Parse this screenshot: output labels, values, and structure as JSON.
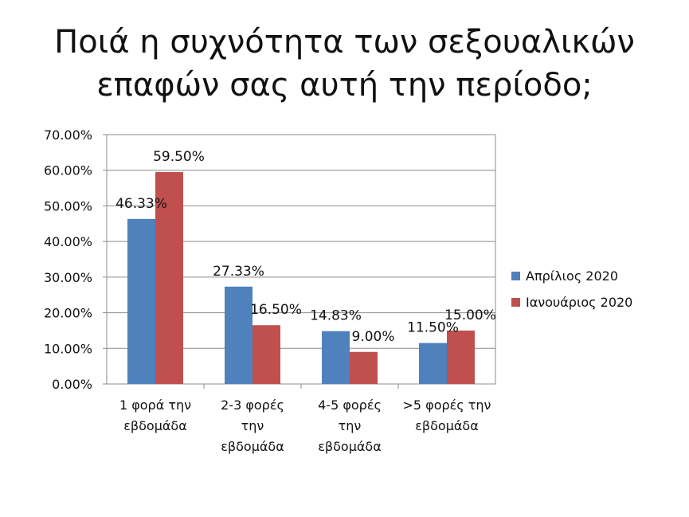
{
  "chart_data": {
    "type": "bar",
    "title": [
      "Ποιά η συχνότητα των σεξουαλικών",
      "επαφών σας αυτή την περίοδο;"
    ],
    "categories": [
      [
        "1 φορά την",
        "εβδομάδα"
      ],
      [
        "2-3 φορές",
        "την",
        "εβδομάδα"
      ],
      [
        "4-5 φορές",
        "την",
        "εβδομάδα"
      ],
      [
        ">5 φορές την",
        "εβδομάδα"
      ]
    ],
    "series": [
      {
        "name": "Απρίλιος 2020",
        "color": "#4F81BD",
        "values": [
          46.33,
          27.33,
          14.83,
          11.5
        ],
        "labels": [
          "46.33%",
          "27.33%",
          "14.83%",
          "11.50%"
        ]
      },
      {
        "name": "Ιανουάριος 2020",
        "color": "#C0504D",
        "values": [
          59.5,
          16.5,
          9.0,
          15.0
        ],
        "labels": [
          "59.50%",
          "16.50%",
          "9.00%",
          "15.00%"
        ]
      }
    ],
    "ylim": [
      0,
      70
    ],
    "yticks": [
      0,
      10,
      20,
      30,
      40,
      50,
      60,
      70
    ],
    "ytick_labels": [
      "0.00%",
      "10.00%",
      "20.00%",
      "30.00%",
      "40.00%",
      "50.00%",
      "60.00%",
      "70.00%"
    ],
    "grid": true,
    "legend": "right"
  }
}
